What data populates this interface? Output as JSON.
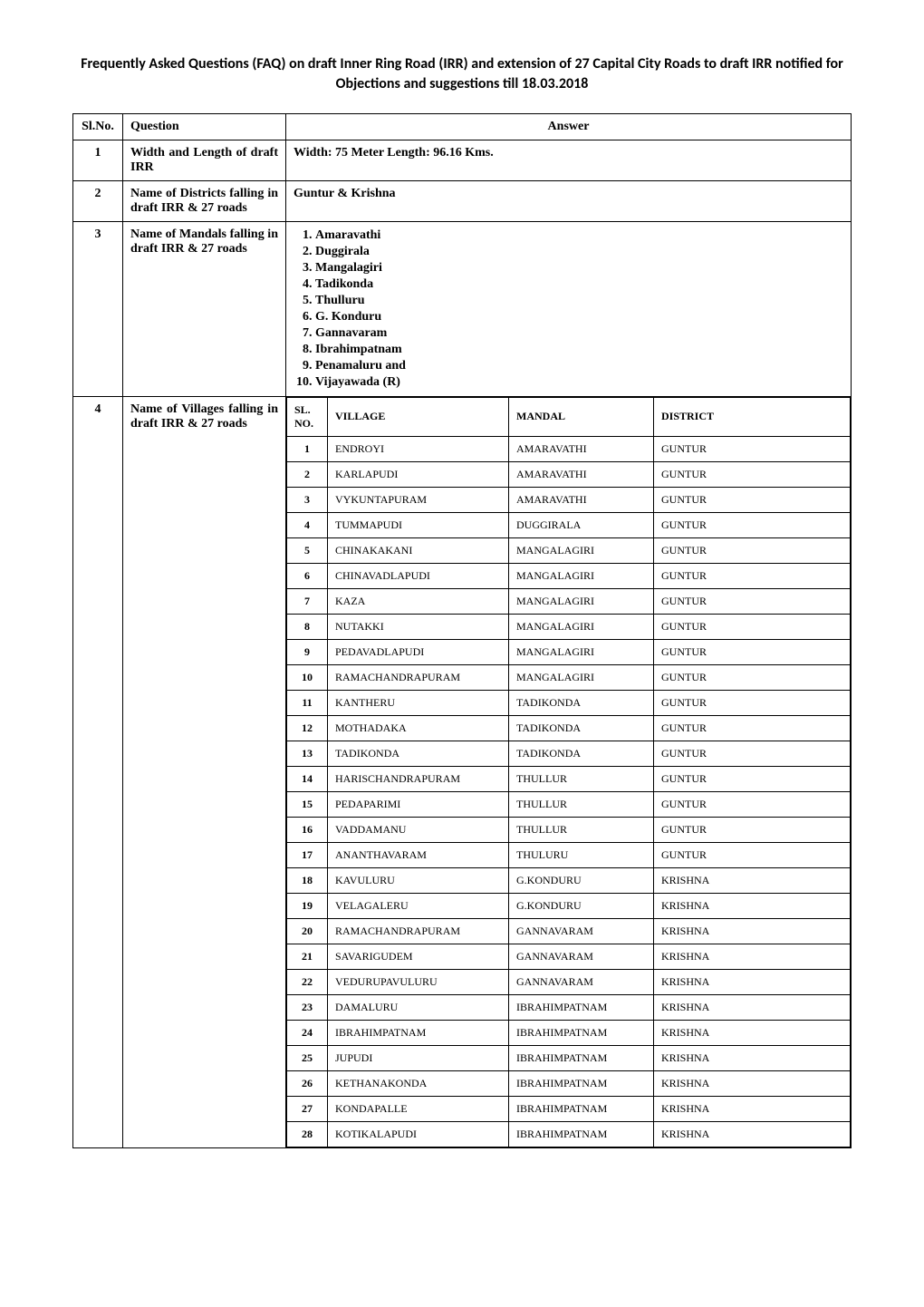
{
  "title": "Frequently Asked Questions (FAQ) on draft Inner Ring Road (IRR) and extension of 27 Capital City Roads to draft IRR notified for Objections and suggestions till 18.03.2018",
  "headers": {
    "slno": "Sl.No.",
    "question": "Question",
    "answer": "Answer"
  },
  "rows": [
    {
      "sl": "1",
      "question": "Width and Length of draft IRR",
      "answer_text": "Width: 75 Meter   Length: 96.16 Kms."
    },
    {
      "sl": "2",
      "question": "Name of Districts falling in draft IRR & 27 roads",
      "answer_text": "Guntur & Krishna"
    },
    {
      "sl": "3",
      "question": "Name of Mandals falling in draft IRR & 27 roads",
      "mandals": [
        "Amaravathi",
        "Duggirala",
        "Mangalagiri",
        "Tadikonda",
        "Thulluru",
        "G. Konduru",
        "Gannavaram",
        "Ibrahimpatnam",
        "Penamaluru and",
        "Vijayawada (R)"
      ]
    },
    {
      "sl": "4",
      "question": "Name of Villages falling in draft IRR & 27 roads",
      "village_headers": {
        "sl": "SL. NO.",
        "village": "VILLAGE",
        "mandal": "MANDAL",
        "district": "DISTRICT"
      },
      "villages": [
        {
          "n": "1",
          "v": "ENDROYI",
          "m": "AMARAVATHI",
          "d": "GUNTUR"
        },
        {
          "n": "2",
          "v": "KARLAPUDI",
          "m": "AMARAVATHI",
          "d": "GUNTUR"
        },
        {
          "n": "3",
          "v": "VYKUNTAPURAM",
          "m": "AMARAVATHI",
          "d": "GUNTUR"
        },
        {
          "n": "4",
          "v": "TUMMAPUDI",
          "m": "DUGGIRALA",
          "d": "GUNTUR"
        },
        {
          "n": "5",
          "v": "CHINAKAKANI",
          "m": "MANGALAGIRI",
          "d": "GUNTUR"
        },
        {
          "n": "6",
          "v": "CHINAVADLAPUDI",
          "m": "MANGALAGIRI",
          "d": "GUNTUR"
        },
        {
          "n": "7",
          "v": "KAZA",
          "m": "MANGALAGIRI",
          "d": "GUNTUR"
        },
        {
          "n": "8",
          "v": "NUTAKKI",
          "m": "MANGALAGIRI",
          "d": "GUNTUR"
        },
        {
          "n": "9",
          "v": "PEDAVADLAPUDI",
          "m": "MANGALAGIRI",
          "d": "GUNTUR"
        },
        {
          "n": "10",
          "v": "RAMACHANDRAPURAM",
          "m": "MANGALAGIRI",
          "d": "GUNTUR"
        },
        {
          "n": "11",
          "v": "KANTHERU",
          "m": "TADIKONDA",
          "d": "GUNTUR"
        },
        {
          "n": "12",
          "v": "MOTHADAKA",
          "m": "TADIKONDA",
          "d": "GUNTUR"
        },
        {
          "n": "13",
          "v": "TADIKONDA",
          "m": "TADIKONDA",
          "d": "GUNTUR"
        },
        {
          "n": "14",
          "v": "HARISCHANDRAPURAM",
          "m": "THULLUR",
          "d": "GUNTUR"
        },
        {
          "n": "15",
          "v": "PEDAPARIMI",
          "m": "THULLUR",
          "d": "GUNTUR"
        },
        {
          "n": "16",
          "v": "VADDAMANU",
          "m": "THULLUR",
          "d": "GUNTUR"
        },
        {
          "n": "17",
          "v": "ANANTHAVARAM",
          "m": "THULURU",
          "d": "GUNTUR"
        },
        {
          "n": "18",
          "v": "KAVULURU",
          "m": "G.KONDURU",
          "d": "KRISHNA"
        },
        {
          "n": "19",
          "v": "VELAGALERU",
          "m": "G.KONDURU",
          "d": "KRISHNA"
        },
        {
          "n": "20",
          "v": "RAMACHANDRAPURAM",
          "m": "GANNAVARAM",
          "d": "KRISHNA"
        },
        {
          "n": "21",
          "v": "SAVARIGUDEM",
          "m": "GANNAVARAM",
          "d": "KRISHNA"
        },
        {
          "n": "22",
          "v": "VEDURUPAVULURU",
          "m": "GANNAVARAM",
          "d": "KRISHNA"
        },
        {
          "n": "23",
          "v": "DAMALURU",
          "m": "IBRAHIMPATNAM",
          "d": "KRISHNA"
        },
        {
          "n": "24",
          "v": "IBRAHIMPATNAM",
          "m": "IBRAHIMPATNAM",
          "d": "KRISHNA"
        },
        {
          "n": "25",
          "v": "JUPUDI",
          "m": "IBRAHIMPATNAM",
          "d": "KRISHNA"
        },
        {
          "n": "26",
          "v": "KETHANAKONDA",
          "m": "IBRAHIMPATNAM",
          "d": "KRISHNA"
        },
        {
          "n": "27",
          "v": "KONDAPALLE",
          "m": "IBRAHIMPATNAM",
          "d": "KRISHNA"
        },
        {
          "n": "28",
          "v": "KOTIKALAPUDI",
          "m": "IBRAHIMPATNAM",
          "d": "KRISHNA"
        }
      ]
    }
  ]
}
